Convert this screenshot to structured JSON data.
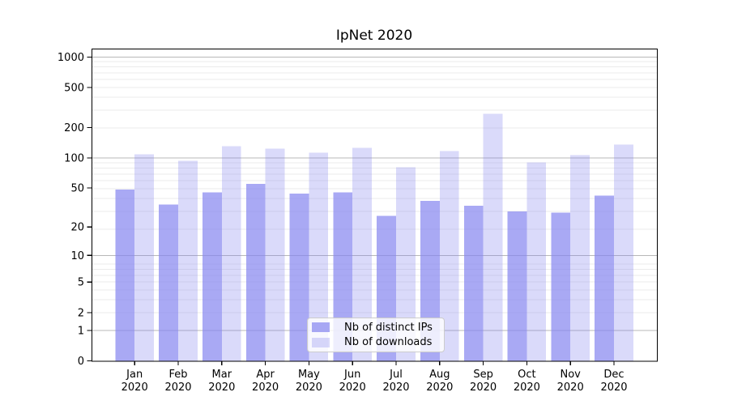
{
  "figure": {
    "background": "#ffffff"
  },
  "chart_data": {
    "type": "bar",
    "title": "IpNet 2020",
    "categories": [
      "Jan",
      "Feb",
      "Mar",
      "Apr",
      "May",
      "Jun",
      "Jul",
      "Aug",
      "Sep",
      "Oct",
      "Nov",
      "Dec"
    ],
    "category_year_line": "2020",
    "series": [
      {
        "name": "Nb of distinct IPs",
        "color": "#8585f0",
        "opacity": 0.7,
        "values": [
          48,
          34,
          45,
          55,
          44,
          45,
          26,
          37,
          33,
          29,
          28,
          42
        ]
      },
      {
        "name": "Nb of downloads",
        "color": "#8585f0",
        "opacity": 0.3,
        "values": [
          109,
          94,
          131,
          124,
          113,
          126,
          81,
          117,
          275,
          90,
          107,
          136
        ]
      }
    ],
    "xlabel": "",
    "ylabel": "",
    "yscale": "log1p",
    "ylim": [
      0,
      1200
    ],
    "yticks": [
      0,
      1,
      2,
      5,
      10,
      20,
      50,
      100,
      200,
      500,
      1000
    ],
    "major_gridlines": [
      1,
      10,
      100,
      1000
    ],
    "grid": "on",
    "legend_position": "lower-center-inside",
    "colors": {
      "major_grid": "#b8b8b8",
      "minor_grid": "#ebebeb",
      "axis_spine": "#000000",
      "tick_label": "#000000"
    }
  }
}
